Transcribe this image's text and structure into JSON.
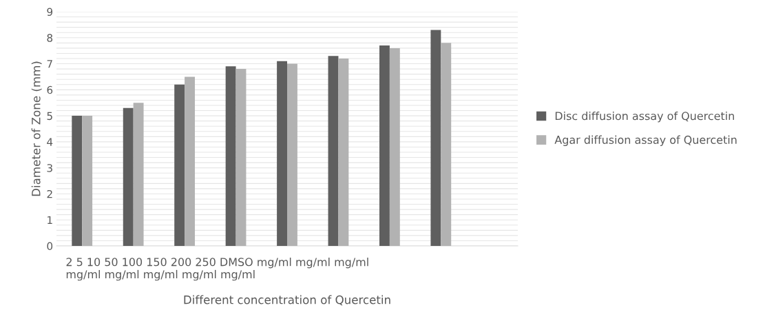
{
  "chart_data": {
    "type": "bar",
    "xlabel": "Different concentration of Quercetin",
    "ylabel": "Diameter of Zone (mm)",
    "categories": [
      null,
      null,
      null,
      null,
      null,
      null,
      null,
      null,
      null
    ],
    "series": [
      {
        "name": "Disc diffusion assay of Quercetin",
        "color": "#5f5f5f",
        "values": [
          5.0,
          5.3,
          6.2,
          6.9,
          7.1,
          7.3,
          7.7,
          8.3,
          null
        ]
      },
      {
        "name": "Agar diffusion assay of Quercetin",
        "color": "#b2b2b2",
        "values": [
          5.0,
          5.5,
          6.5,
          6.8,
          7.0,
          7.2,
          7.6,
          7.8,
          null
        ]
      }
    ],
    "ylim": [
      0,
      9
    ],
    "yticks": [
      0,
      {
        "value": 0.2,
        "label": null
      },
      {
        "value": 0.4,
        "label": null
      },
      {
        "value": 0.6,
        "label": null
      },
      {
        "value": 0.8,
        "label": null
      },
      1,
      {
        "value": 1.2,
        "label": null
      },
      {
        "value": 1.4,
        "label": null
      },
      {
        "value": 1.6,
        "label": null
      },
      {
        "value": 1.8,
        "label": null
      },
      2,
      {
        "value": 2.2,
        "label": null
      },
      {
        "value": 2.4,
        "label": null
      },
      {
        "value": 2.6,
        "label": null
      },
      {
        "value": 2.8,
        "label": null
      },
      3,
      {
        "value": 3.2,
        "label": null
      },
      {
        "value": 3.4,
        "label": null
      },
      {
        "value": 3.6,
        "label": null
      },
      {
        "value": 3.8,
        "label": null
      },
      4,
      {
        "value": 4.2,
        "label": null
      },
      {
        "value": 4.4,
        "label": null
      },
      {
        "value": 4.6,
        "label": null
      },
      {
        "value": 4.8,
        "label": null
      },
      5,
      {
        "value": 5.2,
        "label": null
      },
      {
        "value": 5.4,
        "label": null
      },
      {
        "value": 5.6,
        "label": null
      },
      {
        "value": 5.8,
        "label": null
      },
      6,
      {
        "value": 6.2,
        "label": null
      },
      {
        "value": 6.4,
        "label": null
      },
      {
        "value": 6.6,
        "label": null
      },
      {
        "value": 6.8,
        "label": null
      },
      7,
      {
        "value": 7.2,
        "label": null
      },
      {
        "value": 7.4,
        "label": null
      },
      {
        "value": 7.6,
        "label": null
      },
      {
        "value": 7.8,
        "label": null
      },
      8,
      {
        "value": 8.2,
        "label": null
      },
      {
        "value": 8.4,
        "label": null
      },
      {
        "value": 8.6,
        "label": null
      },
      {
        "value": 8.8,
        "label": null
      },
      9
    ],
    "grid": "y",
    "legend": "right",
    "annotations": [
      "2 5 10 50 100 150 200 250 DMSO mg/ml mg/ml mg/ml\nmg/ml mg/ml mg/ml mg/ml mg/ml"
    ]
  }
}
